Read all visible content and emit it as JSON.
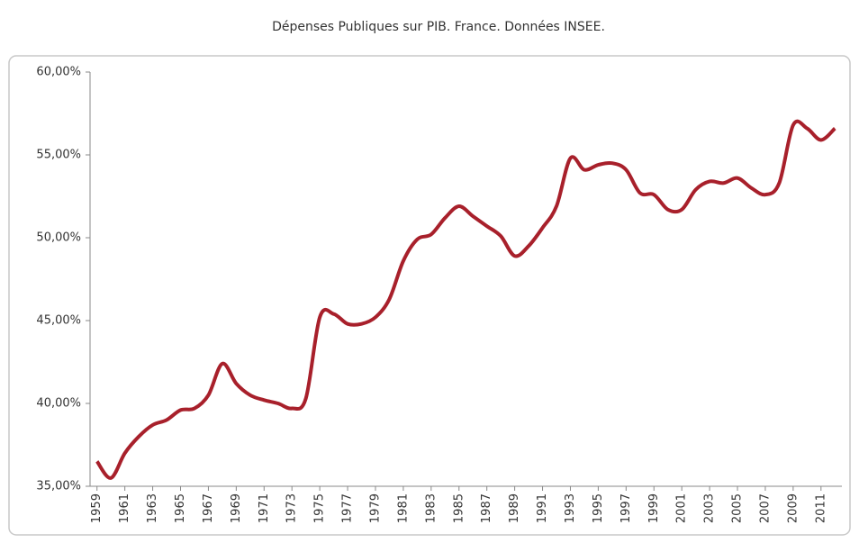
{
  "chart_data": {
    "type": "line",
    "title": "Dépenses Publiques sur PIB. France. Données INSEE.",
    "x": [
      1959,
      1960,
      1961,
      1962,
      1963,
      1964,
      1965,
      1966,
      1967,
      1968,
      1969,
      1970,
      1971,
      1972,
      1973,
      1974,
      1975,
      1976,
      1977,
      1978,
      1979,
      1980,
      1981,
      1982,
      1983,
      1984,
      1985,
      1986,
      1987,
      1988,
      1989,
      1990,
      1991,
      1992,
      1993,
      1994,
      1995,
      1996,
      1997,
      1998,
      1999,
      2000,
      2001,
      2002,
      2003,
      2004,
      2005,
      2006,
      2007,
      2008,
      2009,
      2010,
      2011,
      2012
    ],
    "series": [
      {
        "color": "#a8202b",
        "values": [
          36.5,
          35.5,
          37.0,
          38.0,
          38.7,
          39.0,
          39.6,
          39.7,
          40.5,
          42.4,
          41.2,
          40.5,
          40.2,
          40.0,
          39.7,
          40.3,
          45.2,
          45.4,
          44.8,
          44.8,
          45.2,
          46.3,
          48.6,
          49.9,
          50.2,
          51.2,
          51.9,
          51.3,
          50.7,
          50.1,
          48.9,
          49.5,
          50.6,
          51.9,
          54.8,
          54.1,
          54.4,
          54.5,
          54.1,
          52.7,
          52.6,
          51.7,
          51.7,
          52.9,
          53.4,
          53.3,
          53.6,
          53.0,
          52.6,
          53.3,
          56.8,
          56.6,
          55.9,
          56.6
        ]
      }
    ],
    "xlim": [
      1958.5,
      2012.5
    ],
    "xticks": [
      1959,
      1961,
      1963,
      1965,
      1967,
      1969,
      1971,
      1973,
      1975,
      1977,
      1979,
      1981,
      1983,
      1985,
      1987,
      1989,
      1991,
      1993,
      1995,
      1997,
      1999,
      2001,
      2003,
      2005,
      2007,
      2009,
      2011
    ],
    "ylim": [
      35,
      60
    ],
    "yticks": [
      {
        "value": 35,
        "label": "35,00%"
      },
      {
        "value": 40,
        "label": "40,00%"
      },
      {
        "value": 45,
        "label": "45,00%"
      },
      {
        "value": 50,
        "label": "50,00%"
      },
      {
        "value": 55,
        "label": "55,00%"
      },
      {
        "value": 60,
        "label": "60,00%"
      }
    ],
    "grid": false
  }
}
